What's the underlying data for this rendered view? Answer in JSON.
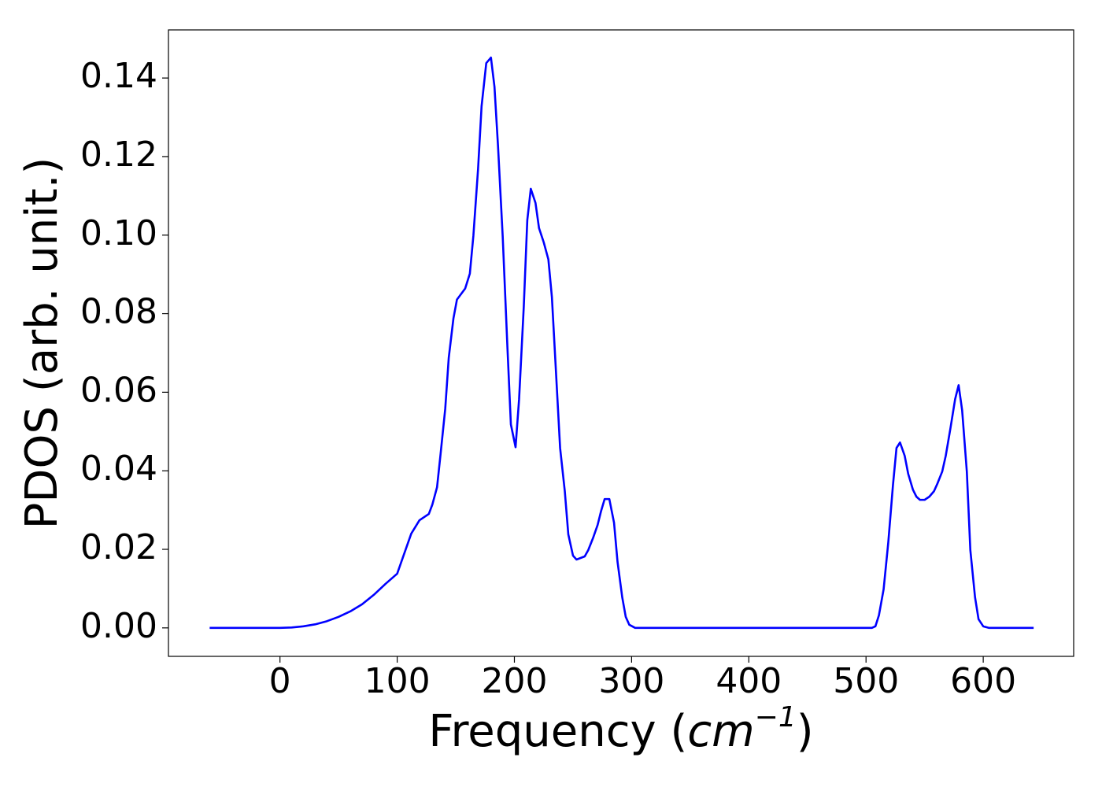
{
  "chart_data": {
    "type": "line",
    "xlabel": [
      "Frequency (",
      "cm",
      "−1",
      ")"
    ],
    "ylabel": "PDOS (arb. unit.)",
    "xlim": [
      -95.15,
      677.15
    ],
    "ylim": [
      -0.00725,
      0.15225
    ],
    "xticks": [
      0,
      100,
      200,
      300,
      400,
      500,
      600
    ],
    "yticks": [
      {
        "value": 0,
        "label": "0.00"
      },
      {
        "value": 0.02,
        "label": "0.02"
      },
      {
        "value": 0.04,
        "label": "0.04"
      },
      {
        "value": 0.06,
        "label": "0.06"
      },
      {
        "value": 0.08,
        "label": "0.08"
      },
      {
        "value": 0.1,
        "label": "0.10"
      },
      {
        "value": 0.12,
        "label": "0.12"
      },
      {
        "value": 0.14,
        "label": "0.14"
      }
    ],
    "grid": false,
    "x": [
      -60,
      0,
      10,
      20,
      30,
      40,
      50,
      60,
      70,
      80,
      90,
      100,
      112,
      119,
      127,
      130,
      134,
      137,
      141,
      144,
      148,
      151,
      158,
      162,
      165,
      169,
      172,
      176,
      180,
      183,
      186,
      190,
      194,
      197,
      201,
      204,
      208,
      211,
      214,
      218,
      221,
      225,
      229,
      232,
      235,
      239,
      243,
      246,
      250,
      253,
      260,
      263,
      267,
      271,
      274,
      277,
      281,
      285,
      288,
      292,
      295,
      298,
      303,
      505,
      508,
      511,
      515,
      519,
      523,
      526,
      529,
      533,
      536,
      540,
      543,
      546,
      550,
      554,
      558,
      561,
      565,
      568,
      572,
      576,
      579,
      582,
      586,
      589,
      593,
      596,
      600,
      605,
      643
    ],
    "series": [
      {
        "name": "PDOS",
        "color": "#0000ff",
        "values": [
          0,
          0,
          0.0001,
          0.0004,
          0.0009,
          0.0017,
          0.0028,
          0.0042,
          0.006,
          0.0084,
          0.0112,
          0.0138,
          0.024,
          0.0274,
          0.029,
          0.0314,
          0.0358,
          0.0442,
          0.0558,
          0.0688,
          0.0788,
          0.0836,
          0.0864,
          0.0902,
          0.0998,
          0.1168,
          0.1328,
          0.1438,
          0.1452,
          0.1378,
          0.1228,
          0.0998,
          0.0718,
          0.0518,
          0.046,
          0.0582,
          0.0818,
          0.1038,
          0.1118,
          0.1082,
          0.1018,
          0.0982,
          0.0938,
          0.0842,
          0.0678,
          0.0458,
          0.0348,
          0.0238,
          0.0184,
          0.0174,
          0.0182,
          0.0198,
          0.0228,
          0.0262,
          0.0298,
          0.0328,
          0.0328,
          0.0268,
          0.0168,
          0.0078,
          0.0028,
          0.0008,
          0,
          0,
          0.0004,
          0.0032,
          0.0098,
          0.0218,
          0.0364,
          0.0458,
          0.0472,
          0.0438,
          0.0392,
          0.0352,
          0.0334,
          0.0326,
          0.0326,
          0.0334,
          0.0348,
          0.0368,
          0.0398,
          0.0438,
          0.0508,
          0.0582,
          0.0618,
          0.0554,
          0.0398,
          0.0198,
          0.0078,
          0.0022,
          0.0004,
          0,
          0
        ]
      }
    ]
  }
}
